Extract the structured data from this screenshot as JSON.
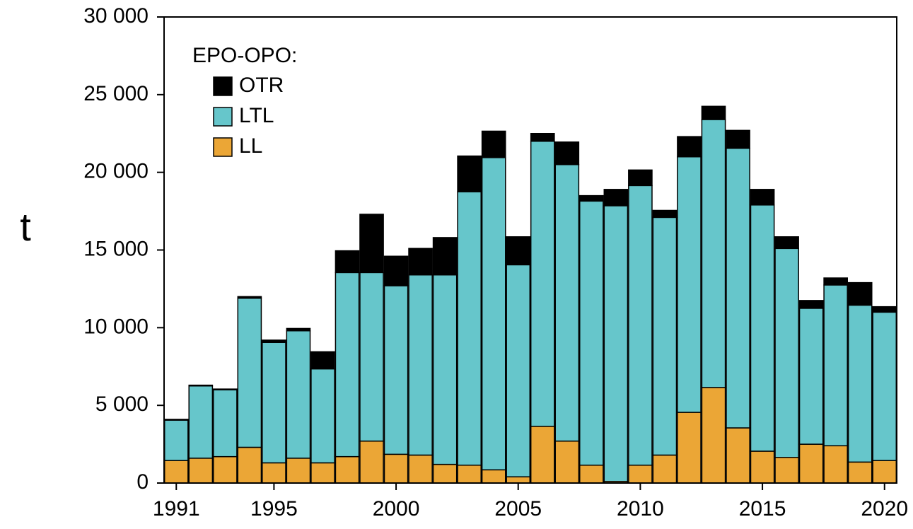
{
  "chart_data": {
    "type": "bar",
    "stacked": true,
    "y_label": "t",
    "legend_title": "EPO-OPO:",
    "x": [
      1991,
      1992,
      1993,
      1994,
      1995,
      1996,
      1997,
      1998,
      1999,
      2000,
      2001,
      2002,
      2003,
      2004,
      2005,
      2006,
      2007,
      2008,
      2009,
      2010,
      2011,
      2012,
      2013,
      2014,
      2015,
      2016,
      2017,
      2018,
      2019,
      2020
    ],
    "series": [
      {
        "name": "LL",
        "color": "#eba636",
        "values": [
          1450,
          1600,
          1700,
          2300,
          1300,
          1600,
          1300,
          1700,
          2700,
          1850,
          1800,
          1200,
          1150,
          850,
          400,
          3650,
          2700,
          1150,
          100,
          1150,
          1800,
          4550,
          6150,
          3550,
          2050,
          1650,
          2500,
          2400,
          1350,
          1450
        ]
      },
      {
        "name": "LTL",
        "color": "#66c6cb",
        "values": [
          2600,
          4650,
          4300,
          9600,
          7750,
          8200,
          6050,
          11850,
          10850,
          10850,
          11600,
          12200,
          17600,
          20100,
          13650,
          18350,
          17800,
          17000,
          17750,
          18000,
          15300,
          16450,
          17250,
          18000,
          15850,
          13450,
          8750,
          10350,
          10100,
          9550
        ]
      },
      {
        "name": "OTR",
        "color": "#000000",
        "values": [
          50,
          50,
          50,
          100,
          150,
          150,
          1100,
          1400,
          3750,
          1900,
          1700,
          2400,
          2300,
          1700,
          1800,
          500,
          1450,
          350,
          1050,
          1000,
          450,
          1300,
          850,
          1150,
          1000,
          750,
          500,
          450,
          1450,
          350
        ]
      }
    ],
    "xlim": [
      1990.5,
      2020.5
    ],
    "xticks": [
      1991,
      1995,
      2000,
      2005,
      2010,
      2015,
      2020
    ],
    "ylim": [
      0,
      30000
    ],
    "yticks": [
      0,
      {
        "value": 5000,
        "label": "5 000"
      },
      {
        "value": 10000,
        "label": "10 000"
      },
      {
        "value": 15000,
        "label": "15 000"
      },
      {
        "value": 20000,
        "label": "20 000"
      },
      {
        "value": 25000,
        "label": "25 000"
      },
      {
        "value": 30000,
        "label": "30 000"
      }
    ],
    "grid": false
  }
}
